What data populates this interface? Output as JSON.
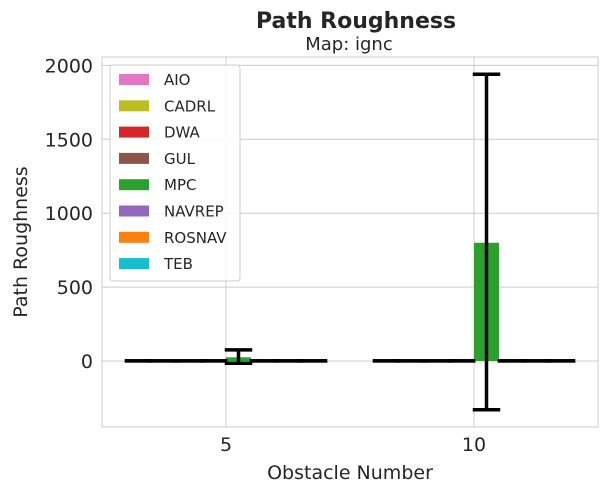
{
  "chart_data": {
    "type": "bar",
    "title": "Path Roughness",
    "subtitle": "Map: ignc",
    "xlabel": "Obstacle Number",
    "ylabel": "Path Roughness",
    "categories": [
      "5",
      "10"
    ],
    "ylim": [
      -450,
      2060
    ],
    "yticks": [
      0,
      500,
      1000,
      1500,
      2000
    ],
    "grid": true,
    "legend_position": "top-left",
    "series": [
      {
        "name": "AIO",
        "color": "#e377c2",
        "values": [
          0.5,
          0.5
        ],
        "err_low": [
          0.5,
          0.5
        ],
        "err_high": [
          0.5,
          0.5
        ]
      },
      {
        "name": "CADRL",
        "color": "#bcbd22",
        "values": [
          0.5,
          0.5
        ],
        "err_low": [
          0.5,
          0.5
        ],
        "err_high": [
          0.5,
          0.5
        ]
      },
      {
        "name": "DWA",
        "color": "#d62728",
        "values": [
          0.5,
          0.5
        ],
        "err_low": [
          0.5,
          0.5
        ],
        "err_high": [
          0.5,
          0.5
        ]
      },
      {
        "name": "GUL",
        "color": "#8c564b",
        "values": [
          0.5,
          0.5
        ],
        "err_low": [
          0.5,
          0.5
        ],
        "err_high": [
          0.5,
          0.5
        ]
      },
      {
        "name": "MPC",
        "color": "#2ca02c",
        "values": [
          25,
          800
        ],
        "err_low": [
          -15,
          -330
        ],
        "err_high": [
          75,
          1940
        ]
      },
      {
        "name": "NAVREP",
        "color": "#9467bd",
        "values": [
          0.5,
          0.5
        ],
        "err_low": [
          0.5,
          0.5
        ],
        "err_high": [
          0.5,
          0.5
        ]
      },
      {
        "name": "ROSNAV",
        "color": "#ff7f0e",
        "values": [
          0.5,
          0.5
        ],
        "err_low": [
          0.5,
          0.5
        ],
        "err_high": [
          0.5,
          0.5
        ]
      },
      {
        "name": "TEB",
        "color": "#17becf",
        "values": [
          0.5,
          0.5
        ],
        "err_low": [
          0.5,
          0.5
        ],
        "err_high": [
          0.5,
          0.5
        ]
      }
    ]
  }
}
